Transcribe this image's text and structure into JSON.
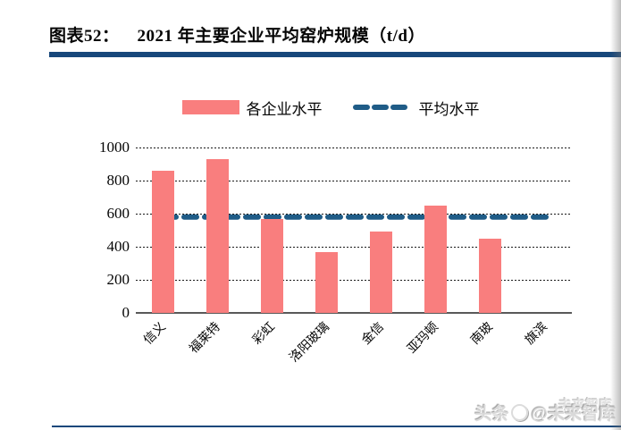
{
  "page": {
    "title_label": "图表52：",
    "title_text": "2021 年主要企业平均窑炉规模（t/d）"
  },
  "colors": {
    "bar": "#F97E7E",
    "average_line": "#1F5C87",
    "title_rule": "#17477B",
    "axis_line": "#595959",
    "gridline": "#1a1a1a"
  },
  "chart_data": {
    "type": "bar",
    "title": "2021 年主要企业平均窑炉规模（t/d）",
    "categories": [
      "信义",
      "福莱特",
      "彩虹",
      "洛阳玻璃",
      "金信",
      "亚玛顿",
      "南玻",
      "旗滨"
    ],
    "series": [
      {
        "name": "各企业水平",
        "type": "bar",
        "values": [
          860,
          930,
          570,
          370,
          490,
          650,
          450,
          0
        ]
      },
      {
        "name": "平均水平",
        "type": "dashed-line",
        "value": 580
      }
    ],
    "xlabel": "",
    "ylabel": "",
    "ylim": [
      0,
      1000
    ],
    "yticks": [
      0,
      200,
      400,
      600,
      800,
      1000
    ],
    "grid": "horizontal-dashed",
    "legend_position": "top-center",
    "x_tick_rotation": 45
  },
  "watermark": {
    "ghost": "未来智库",
    "main_prefix": "头条",
    "main_suffix": "@未来智库"
  }
}
